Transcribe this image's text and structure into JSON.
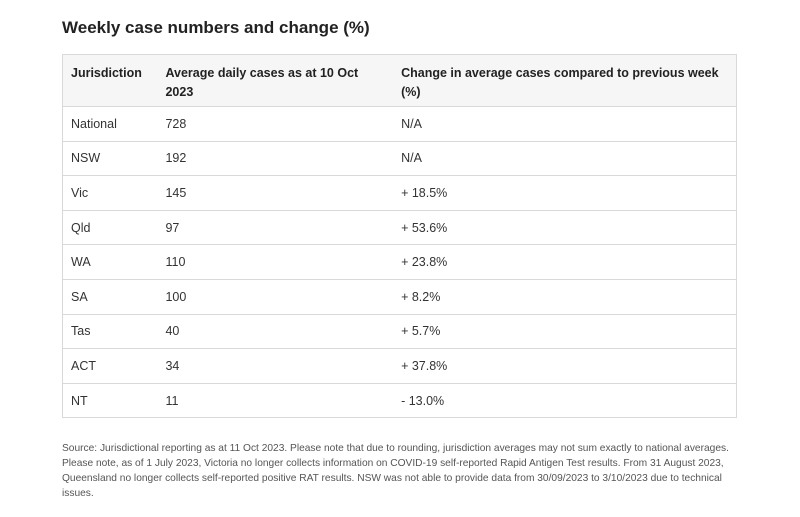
{
  "title": "Weekly case numbers and change (%)",
  "table": {
    "headers": [
      "Jurisdiction",
      "Average daily cases as at 10 Oct 2023",
      "Change in average cases compared to previous week (%)"
    ],
    "rows": [
      [
        "National",
        "728",
        "N/A"
      ],
      [
        "NSW",
        "192",
        "N/A"
      ],
      [
        "Vic",
        "145",
        "+ 18.5%"
      ],
      [
        "Qld",
        "97",
        "+ 53.6%"
      ],
      [
        "WA",
        "110",
        "+ 23.8%"
      ],
      [
        "SA",
        "100",
        "+ 8.2%"
      ],
      [
        "Tas",
        "40",
        "+ 5.7%"
      ],
      [
        "ACT",
        "34",
        "+ 37.8%"
      ],
      [
        "NT",
        "11",
        "- 13.0%"
      ]
    ]
  },
  "footnote": "Source: Jurisdictional reporting as at 11 Oct 2023. Please note that due to rounding, jurisdiction averages may not sum exactly to national averages. Please note, as of 1 July 2023, Victoria no longer collects information on COVID-19 self-reported Rapid Antigen Test results. From 31 August 2023, Queensland no longer collects self-reported positive RAT results. NSW was not able to provide data from 30/09/2023 to 3/10/2023 due to technical issues."
}
